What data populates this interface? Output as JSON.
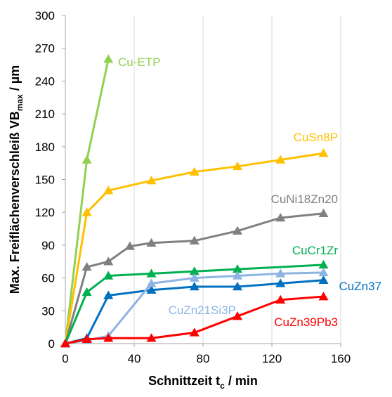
{
  "chart_data": {
    "type": "line",
    "title": "",
    "xlabel": {
      "main": "Schnittzeit t",
      "sub": "c",
      "unit": " / min"
    },
    "ylabel": {
      "main": "Max. Freiflächenverschleiß VB",
      "sub": "max",
      "unit": " / µm"
    },
    "xlim": [
      0,
      160
    ],
    "ylim": [
      0,
      300
    ],
    "xticks": [
      0,
      40,
      80,
      120,
      160
    ],
    "yticks": [
      0,
      30,
      60,
      90,
      120,
      150,
      180,
      210,
      240,
      270,
      300
    ],
    "grid": {
      "vertical": true,
      "horizontal": false
    },
    "legend": "inline labels",
    "series": [
      {
        "name": "Cu-ETP",
        "color": "#92D050",
        "x": [
          0,
          12.5,
          25
        ],
        "y": [
          0,
          168,
          260
        ]
      },
      {
        "name": "CuSn8P",
        "color": "#FFC000",
        "x": [
          0,
          12.5,
          25,
          50,
          75,
          100,
          125,
          150
        ],
        "y": [
          0,
          120,
          140,
          149,
          157,
          162,
          168,
          174
        ]
      },
      {
        "name": "CuNi18Zn20",
        "color": "#808080",
        "x": [
          0,
          12.5,
          25,
          37.5,
          50,
          75,
          100,
          125,
          150
        ],
        "y": [
          0,
          70,
          75,
          89,
          92,
          94,
          103,
          115,
          119
        ]
      },
      {
        "name": "CuCr1Zr",
        "color": "#00B050",
        "x": [
          0,
          12.5,
          25,
          50,
          75,
          100,
          150
        ],
        "y": [
          0,
          47,
          62,
          64,
          66,
          68,
          72
        ]
      },
      {
        "name": "CuZn37",
        "color": "#0070C0",
        "x": [
          0,
          12.5,
          25,
          50,
          75,
          100,
          125,
          150
        ],
        "y": [
          0,
          5,
          44,
          49,
          52,
          52,
          55,
          58
        ]
      },
      {
        "name": "CuZn21Si3P",
        "color": "#8DB4E2",
        "x": [
          0,
          12.5,
          25,
          50,
          75,
          100,
          125,
          150
        ],
        "y": [
          0,
          3,
          7,
          55,
          60,
          62,
          64,
          65
        ]
      },
      {
        "name": "CuZn39Pb3",
        "color": "#FF0000",
        "x": [
          0,
          12.5,
          25,
          50,
          75,
          100,
          125,
          150
        ],
        "y": [
          0,
          4,
          5,
          5,
          10,
          25,
          40,
          43
        ]
      }
    ]
  }
}
